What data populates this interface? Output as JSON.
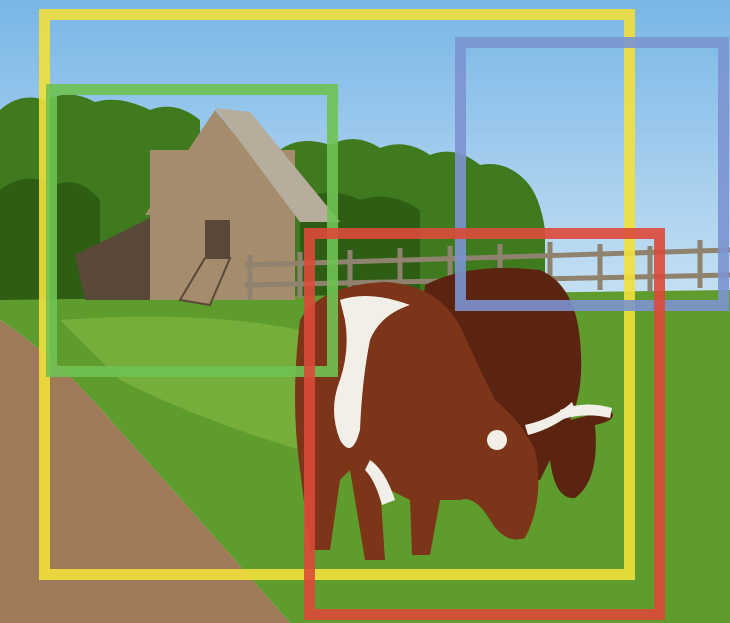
{
  "scene": {
    "colors": {
      "sky_top": "#79b6e6",
      "sky_bottom": "#c6e0f4",
      "grass": "#5f9c2e",
      "grass_light": "#86bb45",
      "trees": "#3f7a1e",
      "trees_dark": "#2d5e14",
      "path": "#9e7a58",
      "barn_wood": "#a48c6c",
      "barn_dark": "#5a4938",
      "roof": "#b7ad9d",
      "cow_brown": "#7c3518",
      "cow_dark": "#5b2410",
      "cow_white": "#f2efe9",
      "fence": "#8f826f"
    }
  },
  "boxes": [
    {
      "name": "yellow",
      "color": "#f2e03a"
    },
    {
      "name": "green",
      "color": "#6fc253"
    },
    {
      "name": "blue",
      "color": "#7b93cf"
    },
    {
      "name": "red",
      "color": "#db4a3a"
    }
  ]
}
